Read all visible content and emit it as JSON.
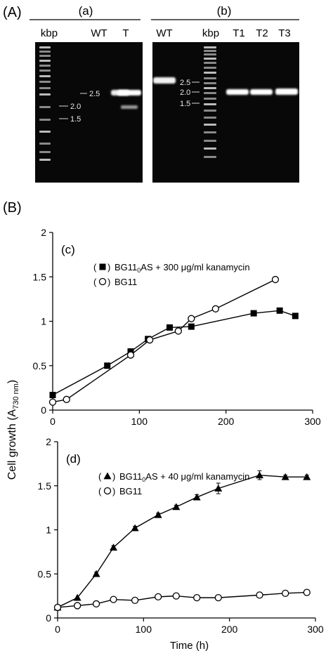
{
  "panel_A": {
    "label": "(A)",
    "sub_a": {
      "label": "(a)",
      "lanes": [
        "kbp",
        "WT",
        "T"
      ],
      "markers": [
        "2.5",
        "2.0",
        "1.5"
      ]
    },
    "sub_b": {
      "label": "(b)",
      "lanes": [
        "WT",
        "kbp",
        "T1",
        "T2",
        "T3"
      ],
      "markers": [
        "2.5",
        "2.0",
        "1.5"
      ]
    }
  },
  "panel_B": {
    "label": "(B)"
  },
  "shared_ylabel": "Cell growth (A730 nm)",
  "chart_data": [
    {
      "type": "line",
      "panel": "(c)",
      "xlim": [
        0,
        300
      ],
      "ylim": [
        0,
        2
      ],
      "xticks": [
        0,
        100,
        200,
        300
      ],
      "yticks": [
        0,
        0.5,
        1,
        1.5,
        2
      ],
      "ytick_labels": [
        "0",
        "0.5",
        "1",
        "1.5",
        "2"
      ],
      "xlabel": "",
      "legend": "top-left",
      "series": [
        {
          "name": "BG11₀AS + 300 μg/ml kanamycin",
          "marker": "filled-square",
          "x": [
            0,
            63,
            90,
            110,
            135,
            160,
            232,
            262,
            280
          ],
          "y": [
            0.17,
            0.5,
            0.66,
            0.8,
            0.93,
            0.94,
            1.09,
            1.12,
            1.06
          ]
        },
        {
          "name": "BG11",
          "marker": "open-circle",
          "x": [
            0,
            16,
            90,
            112,
            145,
            160,
            188,
            257
          ],
          "y": [
            0.09,
            0.12,
            0.62,
            0.79,
            0.89,
            1.03,
            1.14,
            1.47
          ]
        }
      ]
    },
    {
      "type": "line",
      "panel": "(d)",
      "xlim": [
        0,
        300
      ],
      "ylim": [
        0,
        2
      ],
      "xticks": [
        0,
        100,
        200,
        300
      ],
      "yticks": [
        0,
        0.5,
        1,
        1.5,
        2
      ],
      "ytick_labels": [
        "0",
        "0.5",
        "1",
        "1.5",
        "2"
      ],
      "xlabel": "Time (h)",
      "legend": "top-left",
      "series": [
        {
          "name": "BG11₀AS + 40 μg/ml kanamycin",
          "marker": "filled-triangle",
          "x": [
            0,
            23,
            45,
            65,
            90,
            117,
            138,
            162,
            187,
            235,
            265,
            290
          ],
          "y": [
            0.12,
            0.23,
            0.5,
            0.8,
            1.02,
            1.17,
            1.26,
            1.37,
            1.47,
            1.62,
            1.6,
            1.6
          ],
          "err": [
            0,
            0,
            0.02,
            0.02,
            0.02,
            0.02,
            0.02,
            0.03,
            0.06,
            0.05,
            0.02,
            0.02
          ]
        },
        {
          "name": "BG11",
          "marker": "open-circle",
          "x": [
            0,
            23,
            45,
            65,
            90,
            117,
            138,
            162,
            187,
            235,
            265,
            290
          ],
          "y": [
            0.12,
            0.14,
            0.16,
            0.21,
            0.2,
            0.24,
            0.25,
            0.23,
            0.23,
            0.26,
            0.28,
            0.29
          ],
          "err": [
            0,
            0,
            0,
            0.02,
            0,
            0.02,
            0.02,
            0.02,
            0,
            0,
            0.03,
            0.03
          ]
        }
      ]
    }
  ]
}
